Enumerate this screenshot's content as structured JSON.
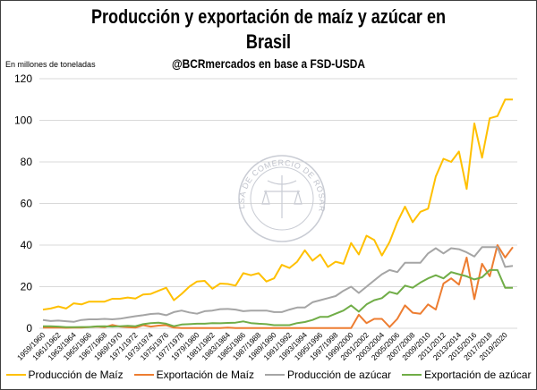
{
  "chart_data": {
    "type": "line",
    "title": "Producción y exportación de maíz y azúcar en Brasil",
    "title_lines": [
      "Producción y exportación de maíz y azúcar en",
      "Brasil"
    ],
    "subtitle": "@BCRmercados en base a FSD-USDA",
    "ylabel": "En millones de toneladas",
    "xlabel": "",
    "ylim": [
      0,
      120
    ],
    "yticks": [
      0,
      20,
      40,
      60,
      80,
      100,
      120
    ],
    "grid": true,
    "legend_position": "bottom",
    "watermark": "BOLSA DE COMERCIO DE ROSARIO",
    "categories": [
      "1959/1960",
      "1960/1961",
      "1961/1962",
      "1962/1963",
      "1963/1964",
      "1964/1965",
      "1965/1966",
      "1966/1967",
      "1967/1968",
      "1968/1969",
      "1969/1970",
      "1970/1971",
      "1971/1972",
      "1972/1973",
      "1973/1974",
      "1974/1975",
      "1975/1976",
      "1976/1977",
      "1977/1978",
      "1978/1979",
      "1979/1980",
      "1980/1981",
      "1981/1982",
      "1982/1983",
      "1983/1984",
      "1984/1985",
      "1985/1986",
      "1986/1987",
      "1987/1988",
      "1988/1989",
      "1989/1990",
      "1990/1991",
      "1991/1992",
      "1992/1993",
      "1993/1994",
      "1994/1995",
      "1995/1996",
      "1996/1997",
      "1997/1998",
      "1998/1999",
      "1999/2000",
      "2000/2001",
      "2001/2002",
      "2002/2003",
      "2003/2004",
      "2004/2005",
      "2005/2006",
      "2006/2007",
      "2007/2008",
      "2008/2009",
      "2009/2010",
      "2010/2011",
      "2011/2012",
      "2012/2013",
      "2013/2014",
      "2014/2015",
      "2015/2016",
      "2016/2017",
      "2017/2018",
      "2018/2019",
      "2019/2020",
      "2020/2021"
    ],
    "tick_labels": [
      "1959/1960",
      "1961/1962",
      "1963/1964",
      "1965/1966",
      "1967/1968",
      "1969/1970",
      "1971/1972",
      "1973/1974",
      "1975/1976",
      "1977/1978",
      "1979/1980",
      "1981/1982",
      "1983/1984",
      "1985/1986",
      "1987/1988",
      "1989/1990",
      "1991/1992",
      "1993/1994",
      "1995/1996",
      "1997/1998",
      "1999/2000",
      "2001/2002",
      "2003/2004",
      "2005/2006",
      "2007/2008",
      "2009/2010",
      "2011/2012",
      "2013/2014",
      "2015/2016",
      "2017/2018",
      "2019/2020"
    ],
    "series": [
      {
        "name": "Producción de Maíz",
        "color": "#FFC000",
        "values": [
          9,
          9.5,
          10.5,
          9.5,
          12,
          11.5,
          12.8,
          12.8,
          12.8,
          14.2,
          14.2,
          14.8,
          14.3,
          16.2,
          16.5,
          18,
          19.5,
          13.5,
          16.5,
          20,
          22.5,
          22.8,
          19,
          21.5,
          21.3,
          20.5,
          26.5,
          25.5,
          26.5,
          22.5,
          24,
          30.5,
          29,
          32,
          37.5,
          32.5,
          35.5,
          29.5,
          32,
          31,
          41,
          35.5,
          44.5,
          42.5,
          35,
          41.5,
          51,
          58.5,
          51,
          56,
          57.5,
          73,
          81.5,
          80,
          85,
          67,
          98.5,
          82,
          101,
          102,
          110,
          110
        ]
      },
      {
        "name": "Exportación de Maíz",
        "color": "#ED7D31",
        "values": [
          0.3,
          0.3,
          0.4,
          0.2,
          0.3,
          0.3,
          0.6,
          0.8,
          0.5,
          1.6,
          0.8,
          0.5,
          0.3,
          1.5,
          0.8,
          1.3,
          1.5,
          0.3,
          0.1,
          0.1,
          0.1,
          0.1,
          0.1,
          0.1,
          0.3,
          0.1,
          0.1,
          0.1,
          0.1,
          0.1,
          0.1,
          0.1,
          0.1,
          0.1,
          0.1,
          0.1,
          0.1,
          0.1,
          0.1,
          0.1,
          0.1,
          6.5,
          2.5,
          4.5,
          4.5,
          0.6,
          4.5,
          11,
          7.5,
          7,
          11.5,
          9,
          21.5,
          24,
          21,
          34,
          14,
          31,
          25,
          40,
          34,
          39
        ]
      },
      {
        "name": "Producción de azúcar",
        "color": "#A5A5A5",
        "values": [
          4,
          3.5,
          3.7,
          3.4,
          3.1,
          4,
          4.3,
          4.3,
          4.5,
          4.3,
          4.6,
          5.2,
          5.8,
          6.3,
          6.9,
          7.1,
          6.3,
          7.8,
          8.5,
          7.6,
          7,
          8.2,
          8.5,
          9.2,
          9.3,
          9,
          8.2,
          8.5,
          8.5,
          8.5,
          7.8,
          7.8,
          9,
          10,
          10,
          12.5,
          13.5,
          14.5,
          15.5,
          18,
          20,
          17,
          20,
          23,
          26,
          28,
          27,
          31.5,
          31.5,
          31.5,
          36,
          38.5,
          36,
          38.5,
          38,
          36.5,
          34.5,
          39,
          39,
          39,
          29.5,
          30
        ]
      },
      {
        "name": "Exportación de azúcar",
        "color": "#70AD47",
        "values": [
          1,
          1,
          0.8,
          0.5,
          0.5,
          0.6,
          0.6,
          0.9,
          1,
          0.8,
          1,
          1.2,
          1,
          2,
          2.5,
          2.7,
          2.2,
          1,
          1.8,
          2,
          2.2,
          2.2,
          2.5,
          2.4,
          2.6,
          2.7,
          3.3,
          2.5,
          2.2,
          2,
          1.5,
          1.5,
          1.5,
          2.5,
          3,
          4,
          5.5,
          5.5,
          7,
          8.5,
          11,
          8,
          11.5,
          13.5,
          14.5,
          17.5,
          16.5,
          20.5,
          19.5,
          22,
          24,
          25.5,
          24,
          27,
          26,
          25,
          23.5,
          24.5,
          28,
          28,
          19.5,
          19.5
        ]
      }
    ]
  }
}
